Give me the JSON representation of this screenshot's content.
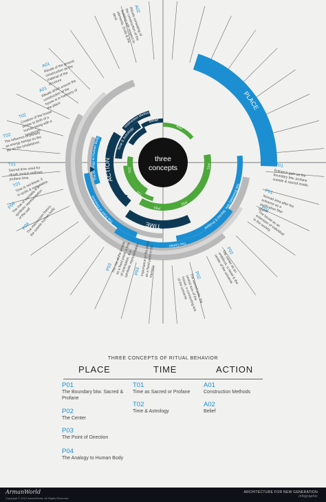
{
  "center": {
    "line1": "three",
    "line2": "concepts"
  },
  "rings": {
    "place": "PLACE",
    "time": "TIME",
    "action": "ACTION",
    "belief": "Belief",
    "a02": "A02",
    "a01": "A01",
    "construction_methods": "Construction Methods",
    "time_astrology": "Time & Astrology",
    "time_sacred": "Time as Sacred or Profane",
    "p01_arc": "P01",
    "p02_arc": "P02",
    "p03_arc": "P03",
    "p04_arc": "P04",
    "t01_arc": "T01",
    "t02_arc": "T02",
    "boundary": "The Boundary btw. Sacred & Profane",
    "the_center": "The Center",
    "point_direction": "The Point of Direction",
    "analogy_body": "The Analogy to Human Body"
  },
  "notes": [
    {
      "code": "A02",
      "text": "Rituals consisting of the construction of the building with respect to elements, Gods & the devil."
    },
    {
      "code": "A01",
      "text": "Rituals of the ground construction as the material of the structure"
    },
    {
      "code": "A01",
      "text": "Rituals which ensure the construction of the house is in harmony of the place"
    },
    {
      "code": "T02",
      "text": "Creation of the house similar to birth of a human being with a horoscope"
    },
    {
      "code": "T02",
      "text": "The influence of planets as energy beings on the life on the inhabitance."
    },
    {
      "code": "T01",
      "text": "Sacred time used for rituals versus ordinary profane time."
    },
    {
      "code": "T01",
      "text": "Time is not linear, it is cyclic & repeatative."
    },
    {
      "code": "P04",
      "text": "The rise of mandala in a symbolic representation of the self"
    },
    {
      "code": "P04",
      "text": "The macrocosm theory, the cosmic human body"
    },
    {
      "code": "P03",
      "text": "The rise of the temple as a fixed point, a way of orientation, & a symbolic representation"
    },
    {
      "code": "P03",
      "text": "Importance of the place as a fixed point in the memory."
    },
    {
      "code": "P02",
      "text": "The sacred pole, the central axis of the house, a connecting link of the universe"
    },
    {
      "code": "P02",
      "text": "The center as an umbilicus, a navel & the center of the universe"
    },
    {
      "code": "P01",
      "text": "The house as an extension of individual in the society."
    },
    {
      "code": "P01",
      "text": "Nomad area after the entrance as a purification filter space."
    },
    {
      "code": "P01",
      "text": "Entrance gate as the boundary btw. profane outside & sacred inside."
    }
  ],
  "legend": {
    "title": "THREE CONCEPTS OF RITUAL BEHAVIOR",
    "columns": [
      {
        "heading": "PLACE",
        "items": [
          {
            "code": "P01",
            "label": "The Boundary btw. Sacred & Profane"
          },
          {
            "code": "P02",
            "label": "The Center"
          },
          {
            "code": "P03",
            "label": "The Point of Direction"
          },
          {
            "code": "P04",
            "label": "The Analogy to Human Body"
          }
        ]
      },
      {
        "heading": "TIME",
        "items": [
          {
            "code": "T01",
            "label": "Time as Sacred or Profane"
          },
          {
            "code": "T02",
            "label": "Time & Astrology"
          }
        ]
      },
      {
        "heading": "ACTION",
        "items": [
          {
            "code": "A01",
            "label": "Construction Methods"
          },
          {
            "code": "A02",
            "label": "Belief"
          }
        ]
      }
    ]
  },
  "footer": {
    "brand": "ArmanWorld",
    "copyright": "Copyright © 2012 ArmanWorld. All Rights Reserved.",
    "line1": "ARCHITECTURE FOR NEW GENERATION",
    "line2": "infographic"
  },
  "colors": {
    "blue": "#1b8fd1",
    "navy": "#0e3954",
    "green": "#4ca83a",
    "gray": "#b9b9b9",
    "light": "#d6d6d6"
  }
}
